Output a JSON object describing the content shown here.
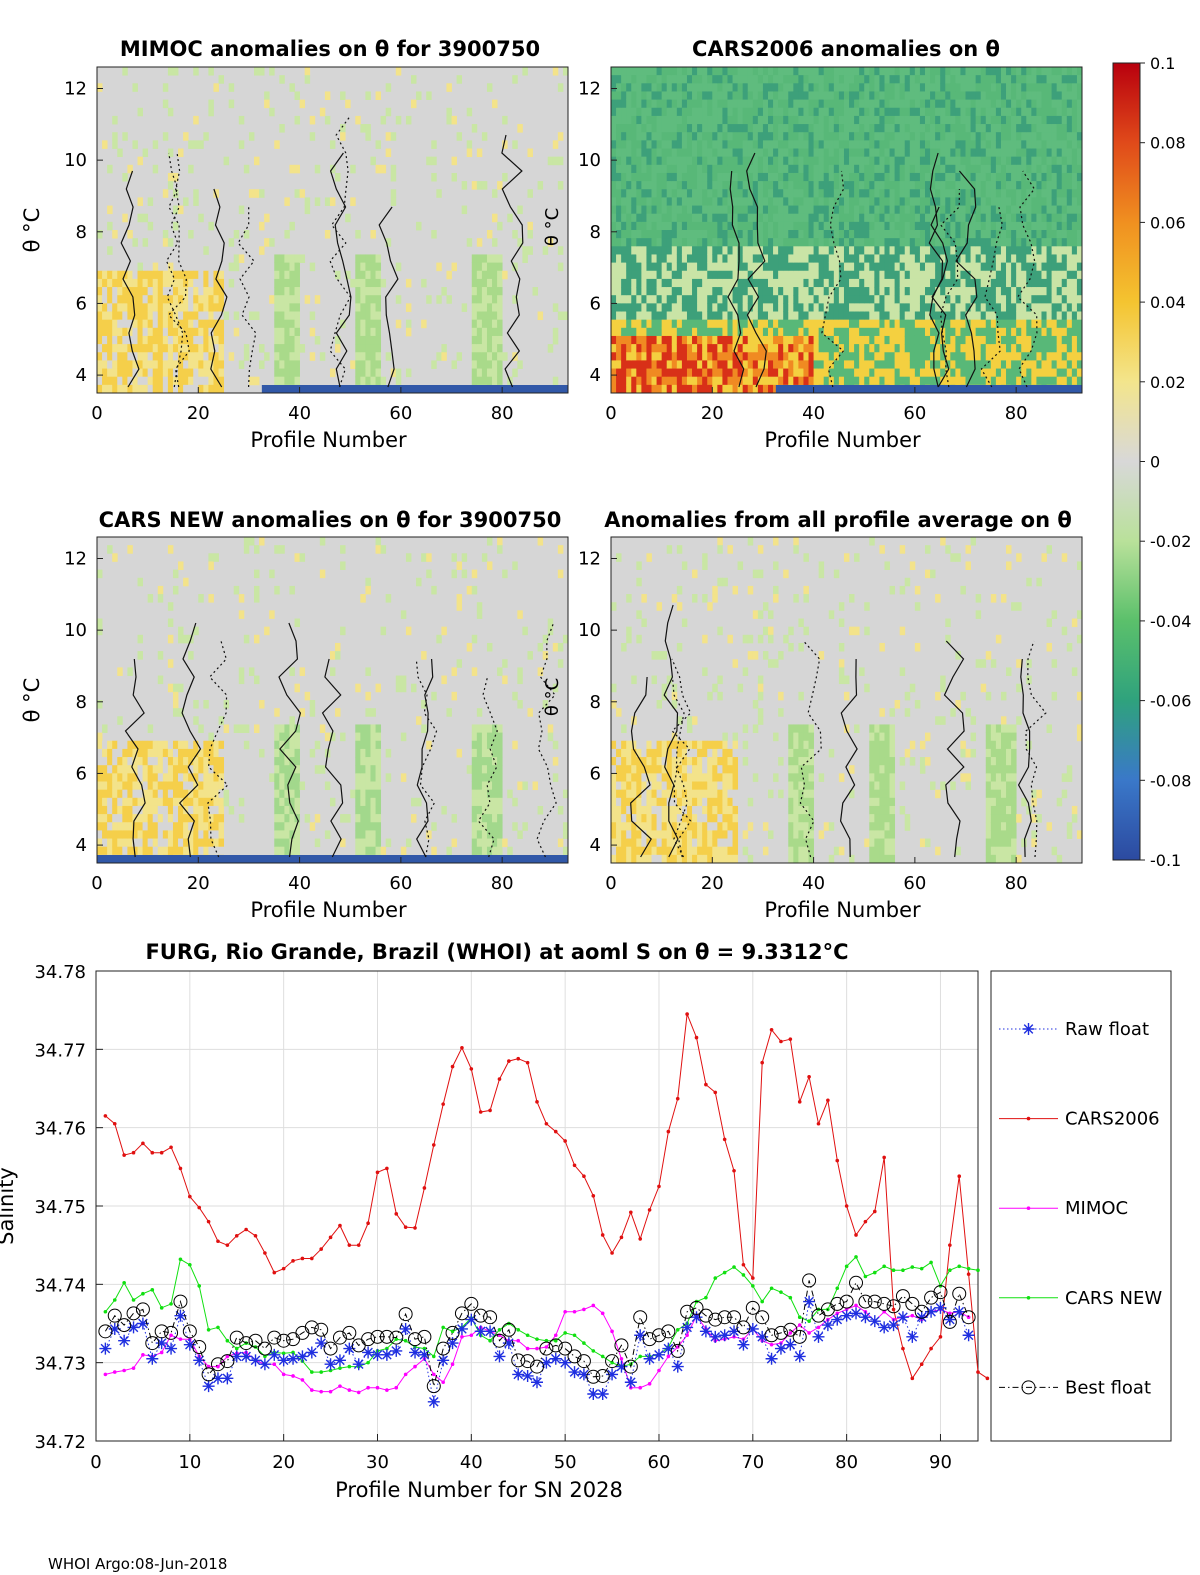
{
  "colorbar": {
    "ticks": [
      "0.1",
      "0.08",
      "0.06",
      "0.04",
      "0.02",
      "0",
      "-0.02",
      "-0.04",
      "-0.06",
      "-0.08",
      "-0.1"
    ],
    "range": [
      -0.1,
      0.1
    ],
    "colors": [
      "#2c4aa0",
      "#3a78c9",
      "#2fa27d",
      "#5bc06b",
      "#b9e19a",
      "#d8d8d8",
      "#f3e58c",
      "#f4c430",
      "#f09020",
      "#e04a1a",
      "#b8000e"
    ]
  },
  "panels": [
    {
      "title": "MIMOC anomalies on θ  for 3900750",
      "ylabel": "θ °C",
      "xlabel": "Profile Number",
      "xticks": [
        "0",
        "20",
        "40",
        "60",
        "80"
      ],
      "yticks": [
        "12",
        "10",
        "8",
        "6",
        "4"
      ],
      "side_label": "θ °C",
      "theme": "mimoc"
    },
    {
      "title": "CARS2006 anomalies on θ",
      "ylabel": "",
      "xlabel": "Profile Number",
      "xticks": [
        "0",
        "20",
        "40",
        "60",
        "80"
      ],
      "yticks": [
        "12",
        "10",
        "8",
        "6",
        "4"
      ],
      "side_label": "",
      "theme": "cars2006"
    },
    {
      "title": "CARS NEW anomalies on θ for 3900750",
      "ylabel": "θ °C",
      "xlabel": "Profile Number",
      "xticks": [
        "0",
        "20",
        "40",
        "60",
        "80"
      ],
      "yticks": [
        "12",
        "10",
        "8",
        "6",
        "4"
      ],
      "side_label": "θ °C",
      "theme": "carsnew"
    },
    {
      "title": "Anomalies from all profile average on θ",
      "ylabel": "",
      "xlabel": "Profile Number",
      "xticks": [
        "0",
        "20",
        "40",
        "60",
        "80"
      ],
      "yticks": [
        "12",
        "10",
        "8",
        "6",
        "4"
      ],
      "side_label": "",
      "theme": "avg"
    }
  ],
  "chart_data": {
    "type": "line",
    "title": "FURG, Rio Grande, Brazil (WHOI) at aoml S on θ = 9.3312°C",
    "xlabel": "Profile Number for SN 2028",
    "ylabel": "Salinity",
    "xlim": [
      0,
      94
    ],
    "ylim": [
      34.72,
      34.78
    ],
    "xticks": [
      0,
      10,
      20,
      30,
      40,
      50,
      60,
      70,
      80,
      90
    ],
    "yticks": [
      34.72,
      34.73,
      34.74,
      34.75,
      34.76,
      34.77,
      34.78
    ],
    "ytick_labels": [
      "34.72",
      "34.73",
      "34.74",
      "34.75",
      "34.76",
      "34.77",
      "34.78"
    ],
    "series": [
      {
        "name": "Raw float",
        "color": "#1f2fe0",
        "marker": "star",
        "line": "dotted",
        "values": [
          34.7318,
          34.7343,
          34.7328,
          34.7345,
          34.735,
          34.7305,
          34.7325,
          34.7318,
          34.736,
          34.7323,
          34.7303,
          34.727,
          34.728,
          34.728,
          34.7308,
          34.7308,
          34.7303,
          34.7298,
          34.731,
          34.7303,
          34.7305,
          34.7308,
          34.7313,
          34.7325,
          34.7298,
          34.7303,
          34.7318,
          34.7298,
          34.7313,
          34.731,
          34.731,
          34.7315,
          34.7343,
          34.7313,
          34.731,
          34.725,
          34.7303,
          34.7325,
          34.7343,
          34.7355,
          34.734,
          34.734,
          34.7308,
          34.7325,
          34.7285,
          34.7283,
          34.7275,
          34.73,
          34.7305,
          34.73,
          34.7288,
          34.7285,
          34.726,
          34.726,
          34.7285,
          34.7295,
          34.7275,
          34.7335,
          34.7305,
          34.731,
          34.7318,
          34.7295,
          34.7345,
          34.7358,
          34.734,
          34.7333,
          34.7335,
          34.734,
          34.7323,
          34.7343,
          34.7333,
          34.7305,
          34.7318,
          34.7323,
          34.7308,
          34.7378,
          34.7333,
          34.7348,
          34.7355,
          34.736,
          34.7363,
          34.7358,
          34.7353,
          34.7345,
          34.7348,
          34.7358,
          34.7333,
          34.7358,
          34.7365,
          34.737,
          34.7355,
          34.7365,
          34.7335
        ]
      },
      {
        "name": "CARS2006",
        "color": "#e01010",
        "marker": "dot",
        "line": "solid",
        "values": [
          34.7615,
          34.7605,
          34.7565,
          34.7568,
          34.758,
          34.7568,
          34.7568,
          34.7575,
          34.7548,
          34.7512,
          34.7498,
          34.748,
          34.7455,
          34.745,
          34.7462,
          34.747,
          34.7462,
          34.744,
          34.7415,
          34.742,
          34.743,
          34.7433,
          34.7433,
          34.7445,
          34.746,
          34.7475,
          34.745,
          34.745,
          34.7478,
          34.7543,
          34.7548,
          34.749,
          34.7473,
          34.7472,
          34.7523,
          34.7578,
          34.763,
          34.7678,
          34.7702,
          34.7675,
          34.762,
          34.7622,
          34.7662,
          34.7685,
          34.7688,
          34.7683,
          34.7633,
          34.7605,
          34.7595,
          34.7583,
          34.7552,
          34.7538,
          34.7513,
          34.7463,
          34.744,
          34.746,
          34.7492,
          34.7458,
          34.7495,
          34.7525,
          34.7595,
          34.7637,
          34.7745,
          34.7715,
          34.7655,
          34.7645,
          34.7585,
          34.7545,
          34.7425,
          34.7408,
          34.7683,
          34.7725,
          34.771,
          34.7713,
          34.7633,
          34.7665,
          34.7605,
          34.7635,
          34.7558,
          34.75,
          34.7463,
          34.748,
          34.7493,
          34.7562,
          34.7368,
          34.7318,
          34.728,
          34.7298,
          34.7318,
          34.7333,
          34.745,
          34.7538,
          34.7413,
          34.7288,
          34.728
        ]
      },
      {
        "name": "MIMOC",
        "color": "#ff00ff",
        "marker": "dot",
        "line": "solid",
        "values": [
          34.7285,
          34.7288,
          34.729,
          34.7293,
          34.731,
          34.7308,
          34.7313,
          34.7335,
          34.733,
          34.733,
          34.7308,
          34.7295,
          34.7295,
          34.7308,
          34.7312,
          34.7313,
          34.7303,
          34.7298,
          34.7298,
          34.7285,
          34.7283,
          34.7278,
          34.7265,
          34.7263,
          34.7263,
          34.727,
          34.7265,
          34.7262,
          34.7268,
          34.7268,
          34.7265,
          34.7268,
          34.7285,
          34.7295,
          34.7305,
          34.7285,
          34.7275,
          34.7298,
          34.7333,
          34.7335,
          34.7345,
          34.734,
          34.7335,
          34.7328,
          34.7328,
          34.7318,
          34.7318,
          34.732,
          34.7335,
          34.7365,
          34.7365,
          34.7368,
          34.7373,
          34.7363,
          34.734,
          34.7305,
          34.7268,
          34.7268,
          34.7273,
          34.729,
          34.7308,
          34.732,
          34.7335,
          34.736,
          34.7343,
          34.7328,
          34.733,
          34.7333,
          34.733,
          34.7343,
          34.7328,
          34.7323,
          34.7325,
          34.7338,
          34.7348,
          34.7338,
          34.7345,
          34.7355,
          34.7363,
          34.7368,
          34.7373,
          34.7365,
          34.7353,
          34.7365,
          34.7355,
          34.7358,
          34.736,
          34.7355,
          34.7365,
          34.7368,
          34.7363,
          34.7365,
          34.7358
        ]
      },
      {
        "name": "CARS NEW",
        "color": "#10e010",
        "marker": "dot",
        "line": "solid",
        "values": [
          34.7365,
          34.738,
          34.7402,
          34.738,
          34.7388,
          34.7393,
          34.737,
          34.7375,
          34.7432,
          34.7425,
          34.7398,
          34.7342,
          34.7345,
          34.7328,
          34.7318,
          34.7325,
          34.732,
          34.7308,
          34.7313,
          34.7312,
          34.7313,
          34.7302,
          34.7288,
          34.7288,
          34.729,
          34.7293,
          34.7295,
          34.7295,
          34.73,
          34.7315,
          34.7318,
          34.733,
          34.7328,
          34.732,
          34.7318,
          34.7308,
          34.7345,
          34.734,
          34.7345,
          34.7357,
          34.7335,
          34.7328,
          34.7342,
          34.735,
          34.7342,
          34.7335,
          34.733,
          34.7328,
          34.7328,
          34.7338,
          34.7335,
          34.7325,
          34.7315,
          34.7308,
          34.73,
          34.7295,
          34.7298,
          34.7308,
          34.7308,
          34.731,
          34.732,
          34.7342,
          34.735,
          34.7378,
          34.7383,
          34.7408,
          34.7415,
          34.7422,
          34.7412,
          34.7398,
          34.7378,
          34.7395,
          34.739,
          34.7383,
          34.7358,
          34.7353,
          34.7368,
          34.7368,
          34.7395,
          34.7423,
          34.7435,
          34.741,
          34.7415,
          34.7423,
          34.7418,
          34.7418,
          34.7422,
          34.742,
          34.7428,
          34.7398,
          34.7418,
          34.7423,
          34.742,
          34.7418
        ]
      },
      {
        "name": "Best float",
        "color": "#000000",
        "marker": "circle",
        "line": "dashdot",
        "values": [
          34.734,
          34.736,
          34.7348,
          34.7363,
          34.7368,
          34.7325,
          34.734,
          34.7338,
          34.7378,
          34.734,
          34.732,
          34.7285,
          34.7298,
          34.7302,
          34.7332,
          34.7325,
          34.7328,
          34.7318,
          34.7332,
          34.7328,
          34.733,
          34.7338,
          34.7345,
          34.7342,
          34.7318,
          34.7332,
          34.7338,
          34.7322,
          34.733,
          34.7333,
          34.7333,
          34.7332,
          34.7362,
          34.733,
          34.7333,
          34.727,
          34.7318,
          34.7338,
          34.7363,
          34.7375,
          34.736,
          34.7358,
          34.7328,
          34.7342,
          34.7303,
          34.7302,
          34.7295,
          34.7318,
          34.7322,
          34.7318,
          34.7308,
          34.7302,
          34.7282,
          34.7283,
          34.7302,
          34.7322,
          34.7295,
          34.7358,
          34.733,
          34.7335,
          34.734,
          34.7315,
          34.7365,
          34.737,
          34.736,
          34.7355,
          34.7358,
          34.7358,
          34.7345,
          34.737,
          34.7358,
          34.7335,
          34.7338,
          34.7342,
          34.7333,
          34.7405,
          34.736,
          34.7368,
          34.7375,
          34.7378,
          34.7402,
          34.7378,
          34.7378,
          34.7375,
          34.7372,
          34.7385,
          34.7375,
          34.7365,
          34.7383,
          34.739,
          34.7352,
          34.7388,
          34.7358
        ]
      }
    ]
  },
  "legend": [
    {
      "label": "Raw float"
    },
    {
      "label": "CARS2006"
    },
    {
      "label": "MIMOC"
    },
    {
      "label": "CARS NEW"
    },
    {
      "label": "Best float"
    }
  ],
  "footer": "WHOI Argo:08-Jun-2018"
}
